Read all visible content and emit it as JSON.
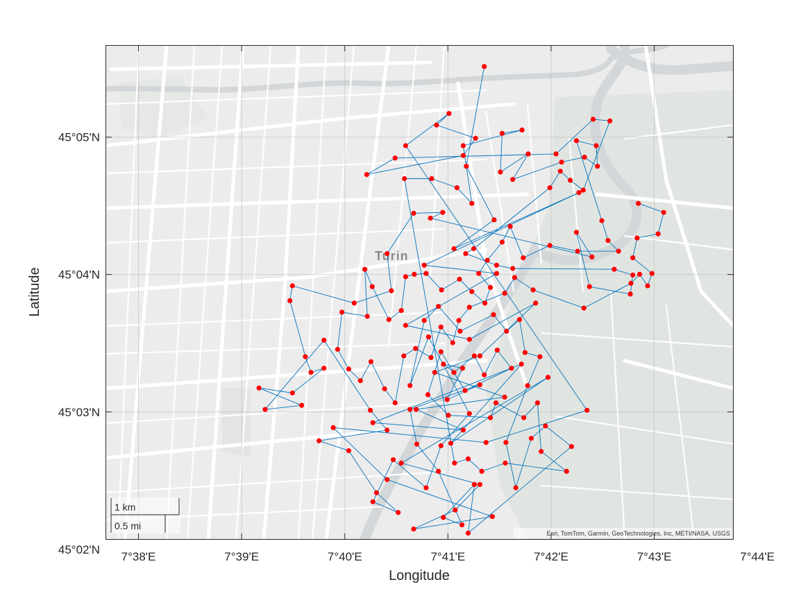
{
  "map": {
    "place_label": "Turin",
    "attribution": "Esri, TomTom, Garmin, GeoTechnologies, Inc, METI/NASA, USGS",
    "scale_bar": {
      "km_label": "1 km",
      "mi_label": "0.5 mi"
    },
    "colors": {
      "track": "#0072BD",
      "points": "#FF0000",
      "basemap": "#ececec",
      "roads": "#ffffff",
      "river": "#d3d7d9",
      "park": "#e2e6e2"
    }
  },
  "chart_data": {
    "type": "geo-scatter-line",
    "xlabel": "Longitude",
    "ylabel": "Latitude",
    "xlim": [
      7.628,
      7.7295
    ],
    "ylim": [
      45.0345,
      45.0945
    ],
    "grid": true,
    "x_ticks": [
      {
        "value": 7.63333,
        "label": "7°38'E"
      },
      {
        "value": 7.65,
        "label": "7°39'E"
      },
      {
        "value": 7.66667,
        "label": "7°40'E"
      },
      {
        "value": 7.68333,
        "label": "7°41'E"
      },
      {
        "value": 7.7,
        "label": "7°42'E"
      },
      {
        "value": 7.71667,
        "label": "7°43'E"
      },
      {
        "value": 7.73333,
        "label": "7°44'E"
      }
    ],
    "y_ticks": [
      {
        "value": 45.03333,
        "label": "45°02'N"
      },
      {
        "value": 45.05,
        "label": "45°03'N"
      },
      {
        "value": 45.06667,
        "label": "45°04'N"
      },
      {
        "value": 45.08333,
        "label": "45°05'N"
      }
    ],
    "points": [
      [
        7.6892,
        45.0919
      ],
      [
        7.6863,
        45.0798
      ],
      [
        7.6908,
        45.0733
      ],
      [
        7.6843,
        45.0698
      ],
      [
        7.7045,
        45.0766
      ],
      [
        7.6795,
        45.0678
      ],
      [
        7.6912,
        45.0668
      ],
      [
        7.6765,
        45.0605
      ],
      [
        7.6868,
        45.0588
      ],
      [
        7.6975,
        45.0632
      ],
      [
        7.6885,
        45.0568
      ],
      [
        7.6812,
        45.0548
      ],
      [
        7.6925,
        45.0518
      ],
      [
        7.6782,
        45.0503
      ],
      [
        7.6858,
        45.0478
      ],
      [
        7.6712,
        45.0487
      ],
      [
        7.6952,
        45.0558
      ],
      [
        7.6838,
        45.0462
      ],
      [
        7.6995,
        45.0542
      ],
      [
        7.6758,
        45.0438
      ],
      [
        7.6885,
        45.0412
      ],
      [
        7.6845,
        45.0381
      ],
      [
        7.6778,
        45.0358
      ],
      [
        7.6905,
        45.0373
      ],
      [
        7.6735,
        45.0418
      ],
      [
        7.6648,
        45.0481
      ],
      [
        7.6895,
        45.0463
      ],
      [
        7.7058,
        45.0502
      ],
      [
        7.6765,
        45.0823
      ],
      [
        7.6835,
        45.0862
      ],
      [
        7.6815,
        45.0848
      ],
      [
        7.6878,
        45.0832
      ],
      [
        7.6858,
        45.0811
      ],
      [
        7.6702,
        45.0788
      ],
      [
        7.6748,
        45.0808
      ],
      [
        7.7008,
        45.0813
      ],
      [
        7.7068,
        45.0855
      ],
      [
        7.7095,
        45.0853
      ],
      [
        7.7052,
        45.0769
      ],
      [
        7.7031,
        45.0781
      ],
      [
        7.7015,
        45.0792
      ],
      [
        7.6998,
        45.0772
      ],
      [
        7.6875,
        45.0698
      ],
      [
        7.6862,
        45.0692
      ],
      [
        7.6912,
        45.0678
      ],
      [
        7.6938,
        45.0674
      ],
      [
        7.7102,
        45.0673
      ],
      [
        7.7132,
        45.0666
      ],
      [
        7.7128,
        45.0643
      ],
      [
        7.7062,
        45.0652
      ],
      [
        7.7041,
        45.0718
      ],
      [
        7.7066,
        45.0688
      ],
      [
        7.6805,
        45.0735
      ],
      [
        7.6825,
        45.0742
      ],
      [
        7.6778,
        45.0741
      ],
      [
        7.6735,
        45.0692
      ],
      [
        7.6742,
        45.0647
      ],
      [
        7.6682,
        45.0632
      ],
      [
        7.6582,
        45.0653
      ],
      [
        7.6578,
        45.0635
      ],
      [
        7.6603,
        45.0567
      ],
      [
        7.6612,
        45.0548
      ],
      [
        7.6633,
        45.0553
      ],
      [
        7.6582,
        45.0523
      ],
      [
        7.6528,
        45.0529
      ],
      [
        7.6597,
        45.0508
      ],
      [
        7.6538,
        45.0503
      ],
      [
        7.6633,
        45.0587
      ],
      [
        7.6708,
        45.0502
      ],
      [
        7.6735,
        45.0478
      ],
      [
        7.6625,
        45.0465
      ],
      [
        7.6673,
        45.0453
      ],
      [
        7.6718,
        45.0402
      ],
      [
        7.6753,
        45.0378
      ],
      [
        7.6712,
        45.0391
      ],
      [
        7.6745,
        45.0442
      ],
      [
        7.6798,
        45.0408
      ],
      [
        7.6822,
        45.0459
      ],
      [
        7.6868,
        45.0498
      ],
      [
        7.6802,
        45.0591
      ],
      [
        7.6772,
        45.0532
      ],
      [
        7.6795,
        45.0611
      ],
      [
        7.6818,
        45.0628
      ],
      [
        7.6853,
        45.0598
      ],
      [
        7.6907,
        45.0618
      ],
      [
        7.6928,
        45.0598
      ],
      [
        7.6949,
        45.0612
      ],
      [
        7.6958,
        45.0572
      ],
      [
        7.6982,
        45.0567
      ],
      [
        7.6962,
        45.0532
      ],
      [
        7.6927,
        45.0463
      ],
      [
        7.6943,
        45.0408
      ],
      [
        7.6968,
        45.0468
      ],
      [
        7.6991,
        45.0483
      ],
      [
        7.7033,
        45.0458
      ],
      [
        7.6866,
        45.0353
      ],
      [
        7.6876,
        45.0412
      ],
      [
        7.6826,
        45.0372
      ],
      [
        7.6856,
        45.0363
      ],
      [
        7.6818,
        45.0428
      ],
      [
        7.6783,
        45.0461
      ],
      [
        7.6772,
        45.0503
      ],
      [
        7.6885,
        45.0533
      ],
      [
        7.6832,
        45.0515
      ],
      [
        7.6857,
        45.0553
      ],
      [
        7.6826,
        45.0558
      ],
      [
        7.6843,
        45.0548
      ],
      [
        7.6876,
        45.0568
      ],
      [
        7.6892,
        45.0545
      ],
      [
        7.6913,
        45.0575
      ],
      [
        7.6936,
        45.0553
      ],
      [
        7.6861,
        45.0526
      ],
      [
        7.6822,
        45.0573
      ],
      [
        7.6801,
        45.0521
      ],
      [
        7.6834,
        45.0496
      ],
      [
        7.6902,
        45.0493
      ],
      [
        7.6911,
        45.0511
      ],
      [
        7.6956,
        45.0493
      ],
      [
        7.6978,
        45.0511
      ],
      [
        7.6984,
        45.0452
      ],
      [
        7.7025,
        45.0428
      ],
      [
        7.6926,
        45.0438
      ],
      [
        7.6888,
        45.0428
      ],
      [
        7.6866,
        45.0443
      ],
      [
        7.6844,
        45.0438
      ],
      [
        7.6763,
        45.0783
      ],
      [
        7.6807,
        45.0783
      ],
      [
        7.6848,
        45.0772
      ],
      [
        7.6872,
        45.0753
      ],
      [
        7.6858,
        45.0823
      ],
      [
        7.6953,
        45.0842
      ],
      [
        7.6921,
        45.0838
      ],
      [
        7.6918,
        45.0791
      ],
      [
        7.6963,
        45.0813
      ],
      [
        7.6938,
        45.0782
      ],
      [
        7.7017,
        45.0803
      ],
      [
        7.7054,
        45.0809
      ],
      [
        7.7075,
        45.0798
      ],
      [
        7.7073,
        45.0823
      ],
      [
        7.7041,
        45.0829
      ],
      [
        7.7082,
        45.0732
      ],
      [
        7.7092,
        45.0708
      ],
      [
        7.7109,
        45.0695
      ],
      [
        7.7043,
        45.0695
      ],
      [
        7.6998,
        45.0702
      ],
      [
        7.6955,
        45.0687
      ],
      [
        7.6934,
        45.0725
      ],
      [
        7.6921,
        45.0706
      ],
      [
        7.6897,
        45.0684
      ],
      [
        7.6883,
        45.0668
      ],
      [
        7.6902,
        45.0651
      ],
      [
        7.6893,
        45.0632
      ],
      [
        7.6872,
        45.0646
      ],
      [
        7.6852,
        45.0661
      ],
      [
        7.6823,
        45.0648
      ],
      [
        7.6798,
        45.0668
      ],
      [
        7.6779,
        45.0667
      ],
      [
        7.6765,
        45.0664
      ],
      [
        7.6758,
        45.0623
      ],
      [
        7.6738,
        45.0612
      ],
      [
        7.6711,
        45.0652
      ],
      [
        7.6699,
        45.0673
      ],
      [
        7.6703,
        45.0616
      ],
      [
        7.6662,
        45.0621
      ],
      [
        7.6655,
        45.0576
      ],
      [
        7.6673,
        45.0552
      ],
      [
        7.6692,
        45.0538
      ],
      [
        7.6709,
        45.0561
      ],
      [
        7.6731,
        45.0528
      ],
      [
        7.6748,
        45.0511
      ],
      [
        7.6762,
        45.0568
      ],
      [
        7.6781,
        45.0577
      ],
      [
        7.6806,
        45.0566
      ],
      [
        7.6822,
        45.0603
      ],
      [
        7.6841,
        45.0584
      ],
      [
        7.6851,
        45.0611
      ],
      [
        7.6868,
        45.0627
      ],
      [
        7.6925,
        45.0644
      ],
      [
        7.6941,
        45.0663
      ],
      [
        7.6971,
        45.0648
      ],
      [
        7.7053,
        45.0626
      ],
      [
        7.7129,
        45.0656
      ],
      [
        7.7143,
        45.0667
      ],
      [
        7.7156,
        45.0653
      ],
      [
        7.7163,
        45.0668
      ],
      [
        7.7132,
        45.0687
      ],
      [
        7.7139,
        45.0711
      ],
      [
        7.7173,
        45.0716
      ],
      [
        7.7182,
        45.0742
      ],
      [
        7.7141,
        45.0753
      ]
    ]
  }
}
